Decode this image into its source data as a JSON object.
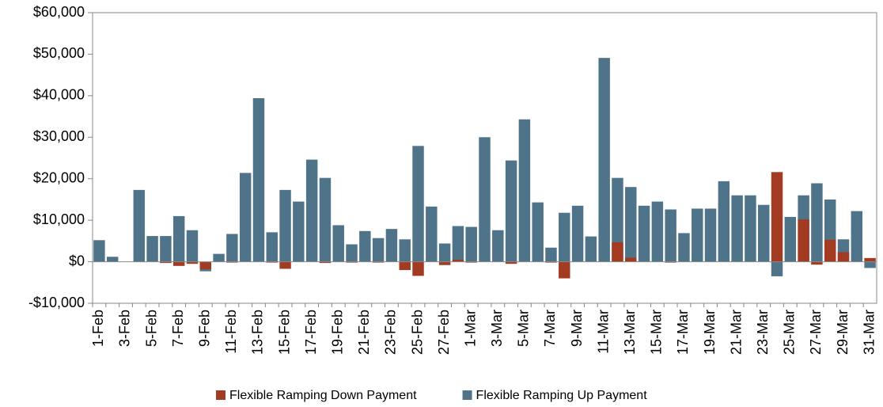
{
  "chart_data": {
    "type": "bar",
    "categories": [
      "1-Feb",
      null,
      "3-Feb",
      null,
      "5-Feb",
      null,
      "7-Feb",
      null,
      "9-Feb",
      null,
      "11-Feb",
      null,
      "13-Feb",
      null,
      "15-Feb",
      null,
      "17-Feb",
      null,
      "19-Feb",
      null,
      "21-Feb",
      null,
      "23-Feb",
      null,
      "25-Feb",
      null,
      "27-Feb",
      null,
      "1-Mar",
      null,
      "3-Mar",
      null,
      "5-Mar",
      null,
      "7-Mar",
      null,
      "9-Mar",
      null,
      "11-Mar",
      null,
      "13-Mar",
      null,
      "15-Mar",
      null,
      "17-Mar",
      null,
      "19-Mar",
      null,
      "21-Mar",
      null,
      "23-Mar",
      null,
      "25-Mar",
      null,
      "27-Mar",
      null,
      "29-Mar",
      null,
      "31-Mar"
    ],
    "series": [
      {
        "name": "Flexible Ramping Down Payment",
        "color": "#a33a22",
        "values": [
          0,
          0,
          0,
          0,
          0,
          -300,
          -1000,
          -500,
          -1800,
          0,
          -200,
          0,
          0,
          -200,
          -1700,
          0,
          0,
          -300,
          0,
          -200,
          0,
          -200,
          0,
          -2000,
          -3400,
          0,
          -800,
          500,
          -200,
          0,
          0,
          -500,
          0,
          0,
          -200,
          -4000,
          0,
          0,
          0,
          4700,
          1000,
          0,
          0,
          -200,
          0,
          0,
          0,
          0,
          0,
          0,
          0,
          21600,
          0,
          10200,
          -700,
          5300,
          2300,
          0,
          900
        ]
      },
      {
        "name": "Flexible Ramping Up Payment",
        "color": "#4f7489",
        "values": [
          5200,
          1200,
          0,
          17300,
          6200,
          6200,
          11000,
          7600,
          -2300,
          1900,
          6700,
          21400,
          39400,
          7100,
          17300,
          14500,
          24600,
          20200,
          8800,
          4200,
          7400,
          5700,
          7900,
          5400,
          27900,
          13300,
          4400,
          8600,
          8400,
          30000,
          7600,
          24400,
          34300,
          14300,
          3400,
          11800,
          13500,
          6100,
          49100,
          20200,
          18000,
          13500,
          14500,
          12600,
          6900,
          12800,
          12800,
          19400,
          16000,
          16000,
          13700,
          -3500,
          10800,
          16000,
          18900,
          15000,
          5400,
          12200,
          -1500
        ]
      }
    ],
    "ylim": [
      -10000,
      60000
    ],
    "yticks": [
      {
        "value": -10000,
        "label": "-$10,000"
      },
      {
        "value": 0,
        "label": "$0"
      },
      {
        "value": 10000,
        "label": "$10,000"
      },
      {
        "value": 20000,
        "label": "$20,000"
      },
      {
        "value": 30000,
        "label": "$30,000"
      },
      {
        "value": 40000,
        "label": "$40,000"
      },
      {
        "value": 50000,
        "label": "$50,000"
      },
      {
        "value": 60000,
        "label": "$60,000"
      }
    ],
    "legend": "bottom"
  }
}
